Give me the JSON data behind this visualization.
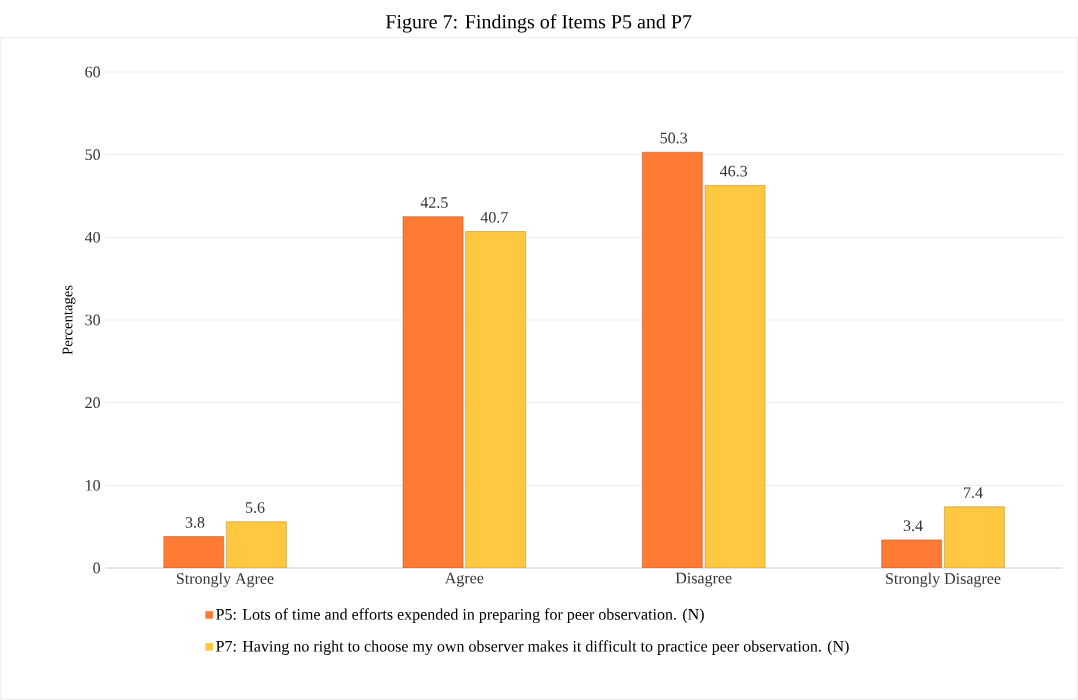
{
  "chart_data": {
    "type": "bar",
    "title": "Figure 7: Findings of Items P5 and P7",
    "ylabel": "Percentages",
    "categories": [
      "Strongly Agree",
      "Agree",
      "Disagree",
      "Strongly Disagree"
    ],
    "series": [
      {
        "name": "P5: Lots of time and efforts expended in preparing for peer observation. (N)",
        "color": "#ff7a33",
        "values": [
          3.8,
          42.5,
          50.3,
          3.4
        ]
      },
      {
        "name": "P7: Having no right to choose my own observer makes it difficult to practice peer observation. (N)",
        "color": "#ffc840",
        "values": [
          5.6,
          40.7,
          46.3,
          7.4
        ]
      }
    ],
    "ylim": [
      0,
      60
    ],
    "yticks": [
      0,
      10,
      20,
      30,
      40,
      50,
      60
    ],
    "grid": "y",
    "legend": "bottom",
    "data_labels": true
  }
}
